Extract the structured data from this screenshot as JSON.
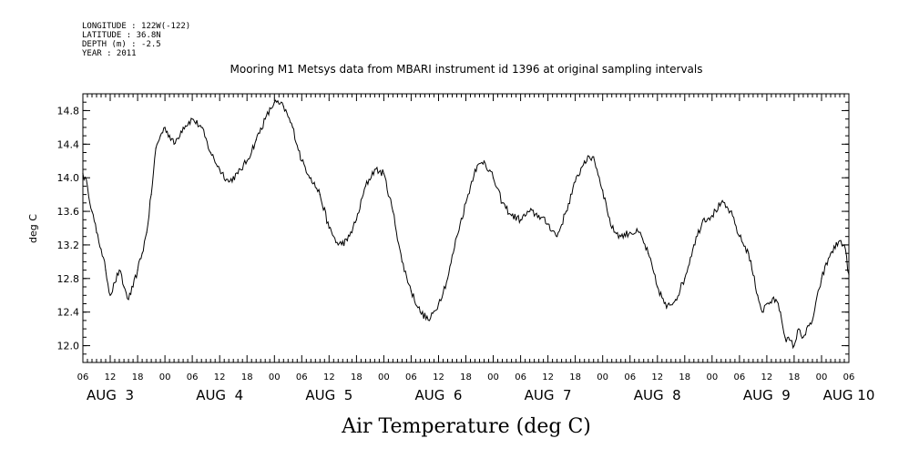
{
  "header": {
    "longitude": "LONGITUDE : 122W(-122)",
    "latitude": "LATITUDE : 36.8N",
    "depth": "DEPTH (m) : -2.5",
    "year": "YEAR : 2011"
  },
  "chart_data": {
    "type": "line",
    "title": "Mooring M1 Metsys data from MBARI instrument id 1396 at original sampling intervals",
    "xlabel": "Air Temperature (deg C)",
    "ylabel": "deg C",
    "ylim": [
      11.8,
      15.0
    ],
    "y_ticks": [
      "12.0",
      "12.4",
      "12.8",
      "13.2",
      "13.6",
      "14.0",
      "14.4",
      "14.8"
    ],
    "xlim_hours": [
      0,
      168
    ],
    "x_hour_labels": [
      "06",
      "12",
      "18",
      "00",
      "06",
      "12",
      "18",
      "00",
      "06",
      "12",
      "18",
      "00",
      "06",
      "12",
      "18",
      "00",
      "06",
      "12",
      "18",
      "00",
      "06",
      "12",
      "18",
      "00",
      "06",
      "12",
      "18",
      "00",
      "06"
    ],
    "x_day_labels": [
      {
        "label": "AUG  3",
        "hour": 6
      },
      {
        "label": "AUG  4",
        "hour": 30
      },
      {
        "label": "AUG  5",
        "hour": 54
      },
      {
        "label": "AUG  6",
        "hour": 78
      },
      {
        "label": "AUG  7",
        "hour": 102
      },
      {
        "label": "AUG  8",
        "hour": 126
      },
      {
        "label": "AUG  9",
        "hour": 150
      },
      {
        "label": "AUG 10",
        "hour": 168
      }
    ],
    "grid": false,
    "series": [
      {
        "x": [
          0,
          1,
          2,
          3,
          4,
          5,
          6,
          7,
          8,
          9,
          10,
          11,
          12,
          13,
          14,
          15,
          16,
          17,
          18,
          20,
          22,
          24,
          26,
          28,
          30,
          32,
          34,
          36,
          38,
          40,
          42,
          44,
          46,
          48,
          50,
          52,
          54,
          56,
          58,
          60,
          62,
          64,
          66,
          68,
          70,
          72,
          74,
          76,
          78,
          80,
          82,
          84,
          86,
          88,
          90,
          92,
          94,
          96,
          98,
          100,
          102,
          104,
          106,
          108,
          110,
          112,
          114,
          116,
          118,
          120,
          122,
          124,
          126,
          128,
          130,
          132,
          134,
          136,
          138,
          140,
          142,
          144,
          146,
          148,
          149,
          150,
          152,
          153,
          154,
          156,
          157,
          158,
          160,
          162,
          164,
          166,
          167,
          168
        ],
        "y": [
          14.05,
          13.9,
          13.6,
          13.35,
          13.15,
          12.9,
          12.6,
          12.75,
          12.9,
          12.7,
          12.55,
          12.7,
          12.9,
          13.1,
          13.35,
          13.8,
          14.35,
          14.5,
          14.6,
          14.4,
          14.6,
          14.7,
          14.6,
          14.3,
          14.1,
          13.95,
          14.05,
          14.2,
          14.45,
          14.7,
          14.9,
          14.85,
          14.6,
          14.2,
          14.0,
          13.8,
          13.4,
          13.2,
          13.25,
          13.5,
          13.9,
          14.1,
          14.05,
          13.6,
          13.0,
          12.65,
          12.4,
          12.3,
          12.5,
          12.8,
          13.3,
          13.7,
          14.1,
          14.2,
          14.0,
          13.7,
          13.55,
          13.5,
          13.6,
          13.55,
          13.45,
          13.3,
          13.6,
          13.95,
          14.2,
          14.25,
          13.85,
          13.4,
          13.3,
          13.35,
          13.35,
          13.1,
          12.7,
          12.45,
          12.55,
          12.8,
          13.2,
          13.5,
          13.55,
          13.7,
          13.6,
          13.3,
          13.1,
          12.6,
          12.4,
          12.5,
          12.55,
          12.4,
          12.1,
          12.0,
          12.2,
          12.1,
          12.3,
          12.8,
          13.1,
          13.25,
          13.2,
          12.85
        ]
      }
    ]
  }
}
